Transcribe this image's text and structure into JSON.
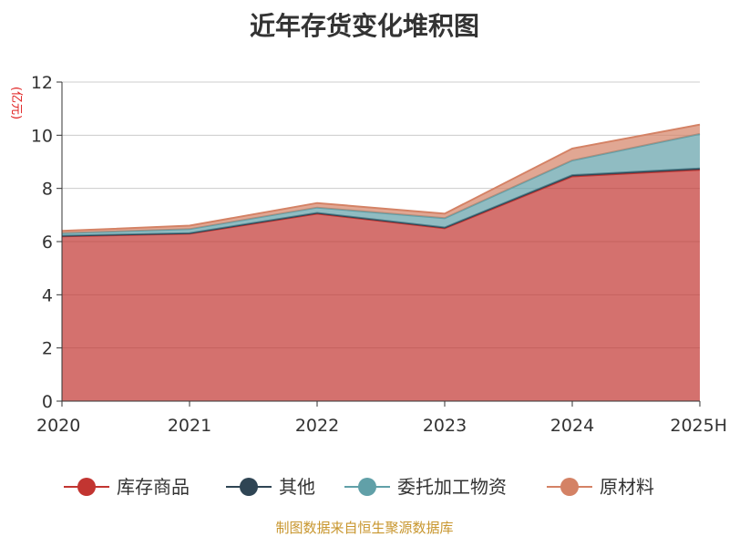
{
  "chart_data": {
    "type": "area",
    "title": "近年存货变化堆积图",
    "y_unit": "(亿元)",
    "categories": [
      "2020",
      "2021",
      "2022",
      "2023",
      "2024",
      "2025H"
    ],
    "ylim": [
      0,
      12
    ],
    "y_ticks": [
      "0",
      "2",
      "4",
      "6",
      "8",
      "10",
      "12"
    ],
    "stacked": true,
    "grid": true,
    "legend_position": "bottom",
    "series": [
      {
        "name": "库存商品",
        "color": "#c23531",
        "values": [
          6.2,
          6.3,
          7.05,
          6.5,
          8.45,
          8.7
        ]
      },
      {
        "name": "其他",
        "color": "#2f4554",
        "values": [
          0.02,
          0.02,
          0.03,
          0.03,
          0.05,
          0.05
        ]
      },
      {
        "name": "委托加工物资",
        "color": "#61a0a8",
        "values": [
          0.1,
          0.15,
          0.2,
          0.35,
          0.55,
          1.3
        ]
      },
      {
        "name": "原材料",
        "color": "#d48265",
        "values": [
          0.08,
          0.13,
          0.17,
          0.17,
          0.45,
          0.35
        ]
      }
    ]
  },
  "footer": {
    "source": "制图数据来自恒生聚源数据库"
  }
}
